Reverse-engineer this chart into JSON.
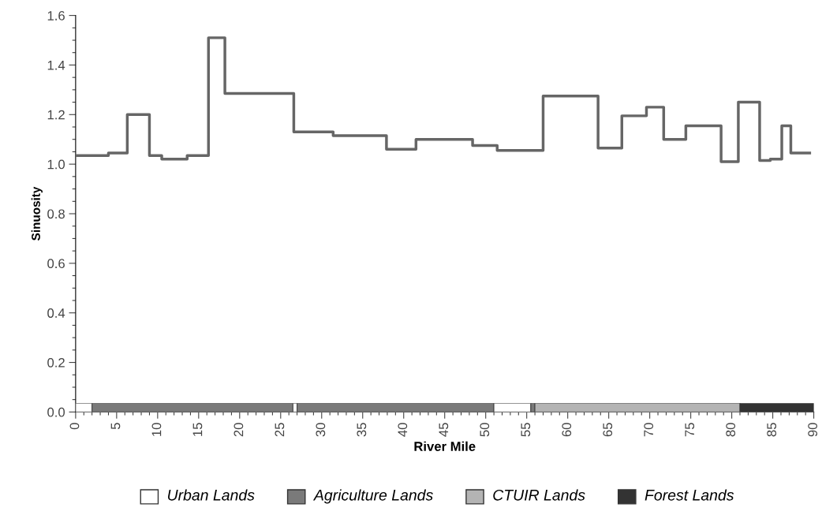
{
  "chart_data": [
    {
      "type": "step",
      "xlabel": "River Mile",
      "ylabel": "Sinuosity",
      "x": [
        0,
        4,
        6.3,
        9,
        10.5,
        13.6,
        16.2,
        18.2,
        26.6,
        31.4,
        37.9,
        41.5,
        48.4,
        51.4,
        57,
        63.7,
        66.6,
        69.6,
        71.7,
        74.4,
        78.7,
        80.8,
        83.4,
        84.7,
        86.1,
        87.2,
        89.5
      ],
      "series": [
        {
          "color": "#666666",
          "values": [
            1.035,
            1.045,
            1.2,
            1.035,
            1.02,
            1.035,
            1.51,
            1.285,
            1.13,
            1.115,
            1.06,
            1.1,
            1.075,
            1.055,
            1.275,
            1.065,
            1.195,
            1.23,
            1.1,
            1.155,
            1.01,
            1.25,
            1.015,
            1.02,
            1.155,
            1.045,
            1.045
          ]
        }
      ],
      "xlim": [
        0,
        90
      ],
      "xticks": [
        0,
        5,
        10,
        15,
        20,
        25,
        30,
        35,
        40,
        45,
        50,
        55,
        60,
        65,
        70,
        75,
        80,
        85,
        90
      ],
      "ylim": [
        0,
        1.6
      ],
      "yticks": [
        {
          "value": 0,
          "label": "0.0"
        },
        0.2,
        0.4,
        0.6,
        0.8,
        {
          "value": 1,
          "label": "1.0"
        },
        1.2,
        1.4,
        1.6
      ],
      "grid": false,
      "line_style": "solid",
      "marker": "none"
    },
    {
      "type": "bar",
      "orientation": "horizontal",
      "stacked": true,
      "categories": [
        null
      ],
      "xlim": [
        0,
        90
      ],
      "tick_labels": false,
      "series": [
        {
          "name": "Urban Lands",
          "color": "#ffffff",
          "values": [
            2
          ]
        },
        {
          "name": "Agriculture Lands",
          "color": "#7a7a7a",
          "values": [
            24.5
          ]
        },
        {
          "color": "#ffffff",
          "values": [
            0.5
          ]
        },
        {
          "color": "#7a7a7a",
          "values": [
            24
          ]
        },
        {
          "color": "#ffffff",
          "values": [
            4.5
          ]
        },
        {
          "color": "#7a7a7a",
          "values": [
            0.5
          ]
        },
        {
          "name": "CTUIR Lands",
          "color": "#b4b4b4",
          "values": [
            25
          ]
        },
        {
          "name": "Forest Lands",
          "color": "#333333",
          "values": [
            9
          ]
        }
      ],
      "legend": "bottom"
    }
  ]
}
